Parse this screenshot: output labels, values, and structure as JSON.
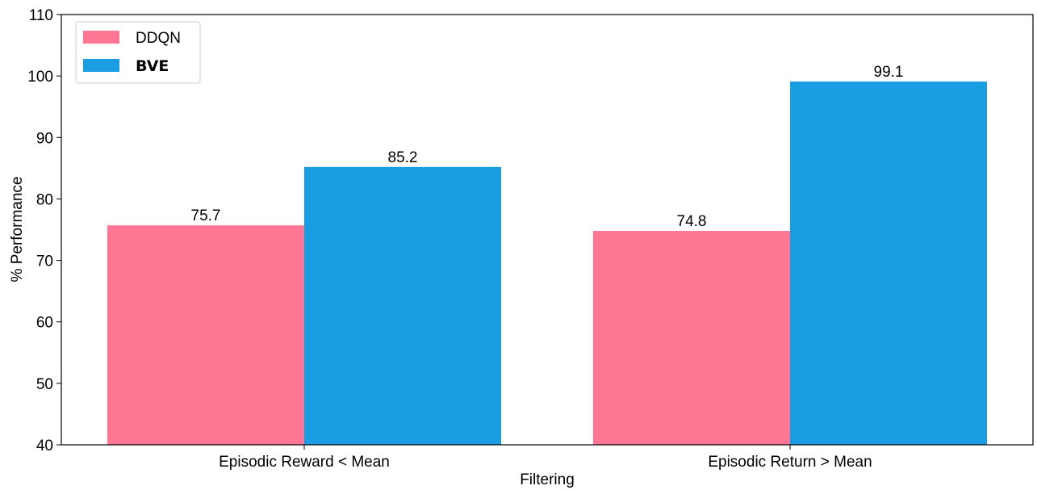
{
  "chart_data": {
    "type": "bar",
    "categories": [
      "Episodic Reward < Mean",
      "Episodic Return > Mean"
    ],
    "series": [
      {
        "name": "DDQN",
        "values": [
          75.7,
          74.8
        ],
        "color": "#ff7593"
      },
      {
        "name": "BVE",
        "values": [
          85.2,
          99.1
        ],
        "color": "#1a9de3"
      }
    ],
    "value_labels": [
      [
        "75.7",
        "74.8"
      ],
      [
        "85.2",
        "99.1"
      ]
    ],
    "xlabel": "Filtering",
    "ylabel": "% Performance",
    "ylim": [
      40,
      110
    ],
    "yticks": [
      "40",
      "50",
      "60",
      "70",
      "80",
      "90",
      "100",
      "110"
    ],
    "grid": false,
    "legend_position": "top-left"
  }
}
